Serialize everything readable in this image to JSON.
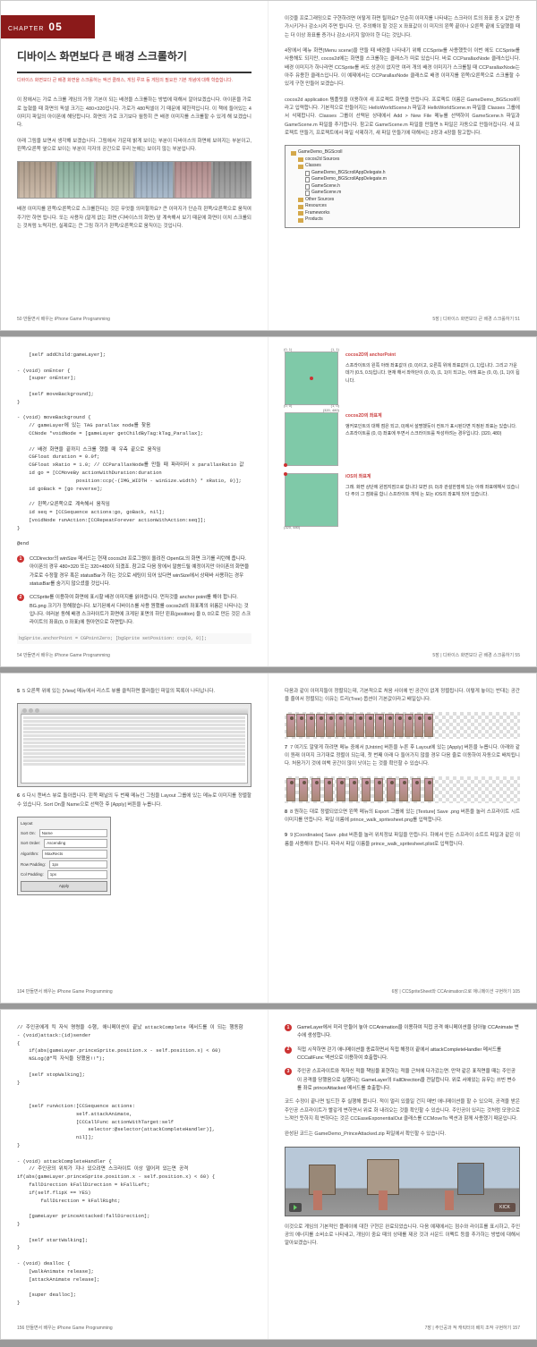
{
  "chapter": {
    "flag_text": "CHAPTER",
    "number": "05",
    "title": "디바이스 화면보다 큰 배경 스크롤하기",
    "subtitle": "디바이스 화면보다 큰 배경 화면을 스크롤하는 액션 클래스, 게임 루프 등 게임의 필요한 기본 개념에 대해 학습합니다."
  },
  "s1": {
    "p1": "이 장에서는 가로 스크롤 게임의 가장 기본이 되는 배경을 스크롤하는 방법에 대해서 알아보겠습니다. 아이폰을 가로로 눕혔을 때 화면의 픽셀 크기는 480×320입니다. 가로가 480픽셀이 기 때문에 제한적입니다. 이 책에 들어있는 4 이미지 파일의 아이폰에 해당합니다. 화면의 가로 크기보다 월등히 큰 배경 이미지를 스크롤할 수 있게 해 보겠습니다.",
    "p2": "아래 그림을 보면서 생각해 보겠습니다. 그림에서 가운데 밝게 보이는 부분이 디바이스의 화면에 보여지는 부분이고, 왼쪽/오른쪽 옆으로 보이는 부분이 각자의 공간으로 우리 눈에는 보이지 않는 부분입니다.",
    "p3": "배경 이미지를 왼쪽/오른쪽으로 스크롤한다는 것은 무엇을 의미할까요? 큰 이미지가 단순히 왼쪽/오른쪽으로 움직여 주기만 하면 됩니다. 또는 사용자 (알게 없는 화면 (디바이스의 화면) 앞 계속해서 보기 때문에 화면이 이치 스크롤되는 것처럼 노력지만, 실제로는 큰 그림 하기가 왼쪽/오른쪽으로 움직이는 것입니다."
  },
  "s1r": {
    "p1": "이것을 프로그래밍으로 구현하려면 어떻게 하면 될까요? 단순히 이미지를 나타내는 스크라이 트의 좌표 중 X 값만 증가시키거나 감소시켜 주면 됩니다. 단, 주의해야 할 것은 X 좌표값이 이 미지의 왼쪽 끝이나 오른쪽 끝에 도달했을 때는 더 이상 좌표를 증가나 감소시키지 않아야 한 다는 것입니다.",
    "p2": "4장에서 메뉴 화면(Menu scene)을 만들 때 배경을 나타내기 위해 CCSprite를 사용했듯이 이번 에도 CCSprite를 사용해도 되지만, cocos2d에는 화면을 스크롤하는 클래스가 따로 있습니다. 바로 CCParallaxNode 클래스입니다. 배경 이미지가 하나라면 CCSprite를 써도 상관이 없지만 여러 개의 배경 이미지가 스크롤될 때 CCParallaxNode는 아주 유용한 클래스입니다. 이 예제에서는 CCParallaxNode 클래스로 배경 이미지를 왼쪽/오른쪽으로 스크롤할 수 있게 구현 만들어 보겠습니다.",
    "p3": "cocos2d application 템플릿을 이용하여 새 프로젝트 화면을 만듭니다. 프로젝트 이름은 GameDemo_BGScroll이라고 입력합니다. 기본적으로 만들어지는 HelloWorldScene.h 파일과 HelloWorldScene.m 파일을 Classes 그룹에서 삭제합니다. Classes 그룹이 선택된 상태에서 Add > New File 메뉴를 선택하여 GameScene.h 파일과 GameScene.m 파일을 추가합니다. 참고로 GameScene.m 파일을 만들면 h 파일은 자동으로 만들어집니다. 새 프로젝트 만들기, 프로젝트에서 파일 삭제하기, 새 파일 만들기에 대해서는 2장과 4장을 참고합니다."
  },
  "tree": {
    "items": [
      {
        "indent": 0,
        "type": "folder",
        "label": "GameDemo_BGScroll"
      },
      {
        "indent": 1,
        "type": "folder",
        "label": "cocos2d Sources"
      },
      {
        "indent": 1,
        "type": "folder",
        "label": "Classes"
      },
      {
        "indent": 2,
        "type": "file",
        "label": "GameDemo_BGScrollAppDelegate.h"
      },
      {
        "indent": 2,
        "type": "file",
        "label": "GameDemo_BGScrollAppDelegate.m"
      },
      {
        "indent": 2,
        "type": "file",
        "label": "GameScene.h"
      },
      {
        "indent": 2,
        "type": "file",
        "label": "GameScene.m"
      },
      {
        "indent": 1,
        "type": "folder",
        "label": "Other Sources"
      },
      {
        "indent": 1,
        "type": "folder",
        "label": "Resources"
      },
      {
        "indent": 1,
        "type": "folder",
        "label": "Frameworks"
      },
      {
        "indent": 1,
        "type": "folder",
        "label": "Products"
      }
    ]
  },
  "foot": {
    "p50": "50  만들면서 배우는 iPhone Game Programming",
    "p51": "5장 | 디바이스 화면보다 큰 배경 스크롤하기  51",
    "p54": "54  만들면서 배우는 iPhone Game Programming",
    "p55": "5장 | 디바이스 화면보다 큰 배경 스크롤하기  55",
    "p104": "104  만들면서 배우는 iPhone Game Programming",
    "p105": "6장 | CCSpriteSheet와 CCAnimation으로 애니메이션 구현하기  105",
    "p156": "156  만들면서 배우는 iPhone Game Programming",
    "p157": "7장 | 주인공과 적 캐릭터의 배치 조작 구현하기  157"
  },
  "s2": {
    "code1": "    [self addChild:gameLayer];\n\n- (void) onEnter {\n    [super onEnter];\n\n    [self moveBackground];\n}\n\n- (void) moveBackground {\n    // gameLayer에 있는 TAG parallax node를 찾음\n    CCNode *voidNode = [gameLayer getChildByTag:kTag_Parallax];\n\n    // 배경 화면을 끝까지 스크롤 했을 때 우측 끝으로 움직임\n    CGFloat duration = 0.0f;\n    CGFloat xRatio = 1.0; // CCParallaxNode를 만들 때 파라미터 x parallaxRatio 값\n    id go = [CCMoveBy actionWithDuration:duration\n                    position:ccp(-(IMG_WIDTH - winSize.width) * xRatio, 0)];\n    id goBack = [go reverse];\n\n    // 왼쪽/오른쪽으로 계속해서 움직임\n    id seq = [CCSequence actions:go, goBack, nil];\n    [voidNode runAction:[CCRepeatForever actionWithAction:seq]];\n}\n\n@end",
    "note1": "CCDirector의 winSize 메서드는 현재 cocos2d 프로그램이 올려진 OpenGL의 화면 크기를 리턴해 줍니다. 아이폰의 경우 480×320 또는 320×480이 되겠죠. 참고로 다음 장에서 말씀드릴 예정이지만 아이폰의 화면을 가로로 수정할 경우 혹은 statusBar가 하는 것으로 세팅이 되어 있다면 winSize에서 상태바 사용하는 경우 statusBar를 숨기지 않으셨을 것입니다.",
    "note2": "CCSprite를 이용하여 화면에 표시할 배경 이미지를 읽어옵니다. 먼저것을 anchor point를 해야 합니다. BG.png 크기가 정해졌습니다. 보기된에서 디바이스를 사용 원했를 cocos2d의 좌표계의 위름은 나타나는 것입니다. 여러분 동해 배경 스크라이트가 화면에 크게된 표면의 하단 왼표(position) 을 0, 0으로 만든 것은 스크라이트의 좌표(0, 0 좌표)에 원아연으로 하면됩니다.",
    "code2": "bgSprite.anchorPoint = CGPointZero;\n\n[bgSprite setPosition: ccp(0, 0)];"
  },
  "diag": {
    "t1": "cocos2D의 anchorPoint",
    "d1": "스프라이트의 왼쪽 아래 좌표값이 (0, 0)이고, 오른쪽 위에 좌표값이 (1, 1)입니다. 그리고 가운데가 (0.5, 0.5)입니다. 현재 해서 좌하단이 (0, 0), (1, 1)이 되고는, 아래 표는 (0, 0), (1, 1)이 됩니다.",
    "t2": "cocos2D의 좌표계",
    "d2": "앵커포인트의 대해 점은 되고, 0)에서 설명했듯이 컨트가 표시된다면 지정된 좌표는 있습니다. 스프라이트를 (0, 0) 좌표에 두면서 스크라이트를 작성하려는 경우입니다. (320, 480)",
    "t3": "iOS의 좌표계",
    "d3": "그래. 화면 상단에 윈점지점으로 합니다 보면 (0, 0)과 관설한점에 있는 아래 좌표에해서 있습니다 주의 그 점화를 합니 스프라이트 개체 는 보는 iOS의 좌표체 되어 있습니다.",
    "corners": {
      "tl": "(0, 1)",
      "tr": "(1, 1)",
      "bl": "(0, 0)",
      "br": "(1, 0)",
      "size": "(320, 480)"
    }
  },
  "s3": {
    "step5": "5  오른쪽 위에 있는 [View] 메뉴에서 리스트 뷰를 클릭하면 불러들인 파일의 목록이 나타납니다.",
    "step6": "6  다시 캔버스 뷰로 돌아옵니다. 왼쪽 패널의 두 번째 메뉴인 그림을 Layout 그룹에 있는 메뉴로 이미지를 정렬할 수 있습니다. Sort On을 Name으로 선택한 후 [Apply] 버튼을 누릅니다.",
    "p7a": "다음과 같이 이미지들이 정렬되는데, 기본적으로 처음 사이에 빈 공간이 없게 정렬됩니다. 이렇게 놓이는 반대는 공간을 줄여서 정렬되는 이유는 트리(Tree) 옵션이 기본값이라고 배일십니다.",
    "step7": "7  여기도 알맞게 하려면 메뉴 중에서 [Untrim] 버튼을 누른 후 Layout에 있는 [Apply] 버튼을 누릅니다. 아래와 같이 원래 이미지 크기대로 정렬이 되는데, 첫 번째 아래 다 들어가지 않을 경우 다음 줄로 이동하여 자동으로 배치됩니다. 처음가기 것에 여백 공간이 많이 낫이는 는 것을 확인할 수 있습니다.",
    "step8": "8  원하는 대로 정렬되었으면 왼쪽 메뉴의 Export 그룹에 있는 [Texture] Save .png 버튼을 눌러 스프라이트 시트 이미지를 만듭니다. 파일 이름에 prince_walk_spritesheet.png를 입력합니다.",
    "step9": "9  [Coordinates] Save .plist 버튼을 눌러 위치정보 파일을 만듭니다. 하에서 만든 스프라이 소트트 파일과 같은 이름을 사용해야 합니다. 따라서 파일 이름을 prince_walk_spritesheet.plist로 입력합니다."
  },
  "dialog": {
    "rows": [
      {
        "label": "Layout"
      },
      {
        "label": "Sort On:",
        "value": "Name"
      },
      {
        "label": "Sort Order:",
        "value": "Ascending"
      },
      {
        "label": "Algorithm:",
        "value": "MaxRects"
      },
      {
        "label": "Row Padding:",
        "value": "1px"
      },
      {
        "label": "Col Padding:",
        "value": "1px"
      }
    ],
    "button": "Apply"
  },
  "s4": {
    "code": "// 주인공에게 킥 자식 명령을 수행, 애니메이션이 끝났 attackComplete 메서드를 이 되는 행동함\n- (void)attack:(id)sender\n{\n    if(abs(gameLayer.princeSprite.position.x - self.position.x) < 60)\n    NSLog(@\"킥 자식을 당했음!!\");\n\n    [self stopWalking];\n}\n\n\n    [self runAction:[CCSequence actions:\n                    self.attackAnimate,\n                    [CCCallFunc actionWithTarget:self\n                        selector:@selector(attackCompleteHandler)],\n                    nil]];\n}\n\n- (void) attackCompleteHandler {\n    // 주인공의 위치가 지나 있으려면 스크라이트 이상 떨어져 있는면 공격\nif(abs(gameLayer.princeSprite.position.x - self.position.x) < 60) {\n    fallDirection kFallDirection = kFallLeft;\n    if(self.flipX == YES)\n        fallDirection = kFallRight;\n\n    [gameLayer princeAttacked:fallDirection];\n}\n\n    [self startWalking];\n}\n\n- (void) dealloc {\n    [walkAnimate release];\n    [attackAnimate release];\n\n    [super dealloc];\n}",
    "n1": "GameLayer에서 미리 만들어 놓아 CCAnimation을 이용하여 직접 공격 애니메이션을 담아놓 CCAnimate 변수에 생성합니다.",
    "n2": "직접 시작하면 걷기 애니메이션을 종료하면서 직접 해정이 끝에서 attackCompleteHandler 메서드를 CCCallFunc 액션으로 이용하여 호출합니다.",
    "n3": "주인공 스프라이트와 적자신 적을 책임을 표현하는 적을 근처에 다가갔는면. 만약 같은 표직면을 때는 주인공이 공격을 당했음으로 실행다는 GameLayer의 FallDirection을 전달합니다. 위로 서애있는 유무는 쓰빈 변수를 좌로 princeAttacked 메서드를 호출합니다.",
    "p1": "코드 수정이 끝나면 빌드한 후 실행해 봅니다. 적이 멀리 있을일 건지 매번 애니메이션을 할 수 있으며, 공격을 받은 주인공 스프라이트가 빨갛게 변하면서 위로 화 내려오는 것을 확인할 수 있습니다. 주인공이 있리는 것처럼 모양으로 느껴언 듯하지 획 변하다는 것은 CCEaseExponentialOut 클래스를 CCMoveTo 액션과 함께 사용했기 때문입니다.",
    "p2": "완성된 코드는 GameDemo_PrinceAttacked.zip 파일에서 확인할 수 있습니다.",
    "p3": "이것으로 게임의 기본적인 플레이에 대한 구현은 완료되었습니다. 다음 예제에서는 점수와 라이프를 표시하고, 주인공의 에너지를 소비소로 나타내고, 개임이 중요 때의 상태를 제공 것과 사운드 이펙트 등을 추가하는 방법에 대해서 알아보겠습니다.",
    "kick": "KICK"
  }
}
